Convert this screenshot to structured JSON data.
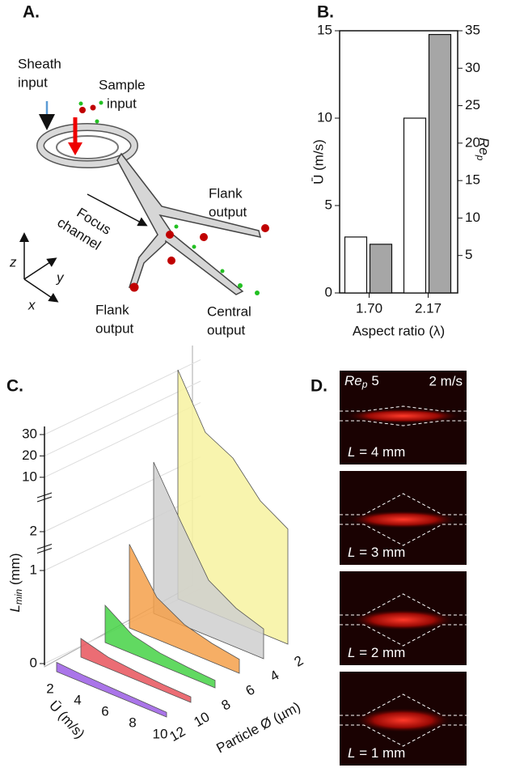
{
  "panel_a": {
    "label": "A.",
    "texts": [
      [
        "Sheath",
        "input"
      ],
      [
        "Sample",
        "input"
      ],
      [
        "Focus",
        "channel"
      ],
      [
        "Flank",
        "output"
      ],
      [
        "Flank",
        "output"
      ],
      [
        "Central",
        "output"
      ]
    ],
    "axes": [
      "z",
      "y",
      "x"
    ]
  },
  "chart_data": [
    {
      "type": "bar",
      "panel": "B.",
      "categories": [
        "1.70",
        "2.17"
      ],
      "xlabel": "Aspect ratio (λ)",
      "ylabel": "Ū (m/s)",
      "y2label": "Re",
      "y2label_sub": "p",
      "ylim": [
        0,
        15
      ],
      "yticks": [
        0,
        5,
        10,
        15
      ],
      "y2lim": [
        0,
        35
      ],
      "y2ticks": [
        5,
        10,
        15,
        20,
        25,
        30,
        35
      ],
      "series": [
        {
          "color": "#ffffff",
          "values": [
            3.2,
            10
          ]
        },
        {
          "color": "#a6a6a6",
          "values": [
            6.5,
            34.5
          ],
          "axis": "y2"
        }
      ]
    },
    {
      "type": "ribbon3d",
      "panel": "C.",
      "x": [
        2,
        4,
        6,
        8,
        10
      ],
      "xlabel": "Ū (m/s)",
      "xticks": [
        2,
        4,
        6,
        8,
        10
      ],
      "particle_label": "Particle Ø (µm)",
      "particle_ticks": [
        12,
        10,
        8,
        6,
        4,
        2
      ],
      "zlabel": "L",
      "zlabel_sub": "min",
      "zlabel_unit": " (mm)",
      "zlim": [
        0,
        30
      ],
      "zticks": [
        0,
        1,
        2,
        10,
        20,
        30
      ],
      "z_breaks": [
        [
          1.2,
          1.8
        ],
        [
          2.6,
          5
        ]
      ],
      "series": [
        {
          "color": "#9b5de5",
          "values": [
            0.1,
            0.08,
            0.07,
            0.06,
            0.05
          ]
        },
        {
          "color": "#e8545c",
          "values": [
            0.2,
            0.12,
            0.09,
            0.07,
            0.06
          ]
        },
        {
          "color": "#45d245",
          "values": [
            0.4,
            0.2,
            0.13,
            0.1,
            0.08
          ]
        },
        {
          "color": "#f5a04a",
          "values": [
            0.9,
            0.45,
            0.28,
            0.2,
            0.15
          ]
        },
        {
          "color": "#cfcfcf",
          "values": [
            2.4,
            1.1,
            0.6,
            0.42,
            0.32
          ]
        },
        {
          "color": "#f7f2a0",
          "values": [
            30,
            6,
            3,
            2,
            1.4
          ]
        }
      ]
    }
  ],
  "panel_d": {
    "label": "D.",
    "rep": "Re",
    "rep_sub": "p",
    "rep_value": "5",
    "speed": "2 m/s",
    "images": [
      {
        "var": "L",
        "text": " = 4 mm"
      },
      {
        "var": "L",
        "text": " = 3 mm"
      },
      {
        "var": "L",
        "text": " = 2 mm"
      },
      {
        "var": "L",
        "text": " = 1 mm"
      }
    ]
  }
}
